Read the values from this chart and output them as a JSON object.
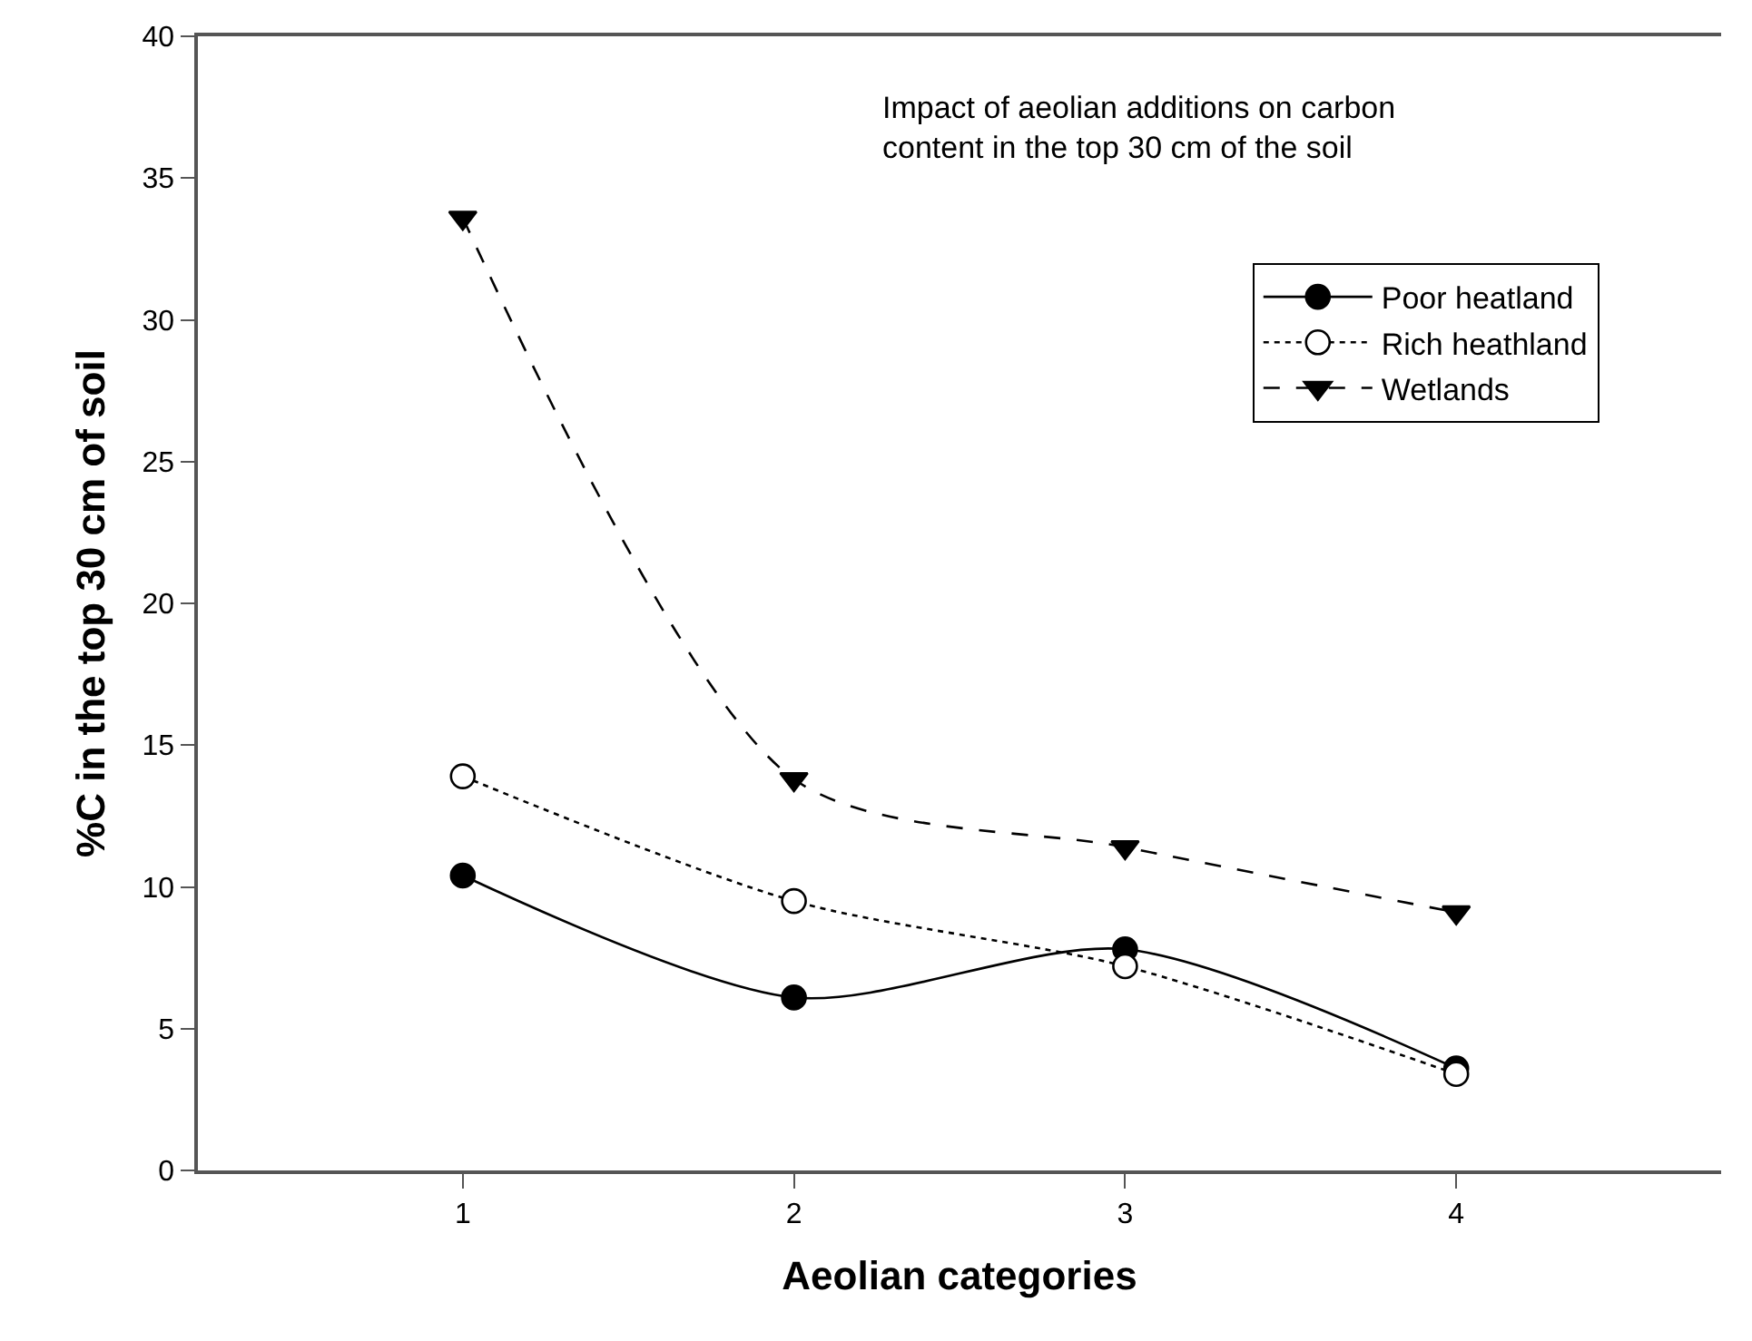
{
  "chart_data": {
    "type": "line",
    "xlabel": "Aeolian categories",
    "ylabel": "%C in the top 30 cm of soil",
    "annotations": [
      "Impact of aeolian additions on carbon content in the top 30 cm of the soil"
    ],
    "x": [
      1,
      2,
      3,
      4
    ],
    "series": [
      {
        "name": "Poor heatland",
        "color": "#000000",
        "values": [
          10.4,
          6.1,
          7.8,
          3.6
        ],
        "marker": "circle",
        "line_style": "solid"
      },
      {
        "name": "Rich heathland",
        "color": "#000000",
        "values": [
          13.9,
          9.5,
          7.2,
          3.4
        ],
        "marker": "circle-open",
        "line_style": "dotted"
      },
      {
        "name": "Wetlands",
        "color": "#000000",
        "values": [
          33.6,
          13.8,
          11.4,
          9.1
        ],
        "marker": "triangle",
        "line_style": "dashed"
      }
    ],
    "xlim": [
      0.2,
      4.8
    ],
    "xticks": [
      1,
      2,
      3,
      4
    ],
    "ylim": [
      0,
      40
    ],
    "yticks": [
      0,
      5,
      10,
      15,
      20,
      25,
      30,
      35,
      40
    ],
    "grid": false,
    "legend": "top right"
  }
}
